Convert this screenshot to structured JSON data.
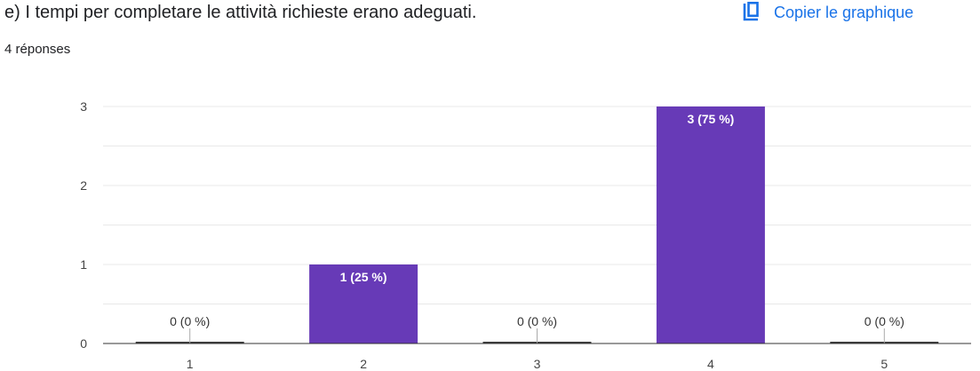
{
  "header": {
    "question": "e) I tempi per completare le attività richieste erano adeguati.",
    "response_count": "4 réponses",
    "copy_label": "Copier le graphique",
    "copy_icon": "copy-icon"
  },
  "colors": {
    "bar": "#673ab7",
    "accent": "#1a73e8",
    "grid": "#e8e8e8",
    "axis": "#333333",
    "text": "#202124"
  },
  "chart_data": {
    "type": "bar",
    "categories": [
      "1",
      "2",
      "3",
      "4",
      "5"
    ],
    "values": [
      0,
      1,
      0,
      3,
      0
    ],
    "data_labels": [
      "0 (0 %)",
      "1 (25 %)",
      "0 (0 %)",
      "3 (75 %)",
      "0 (0 %)"
    ],
    "yticks": [
      0,
      1,
      2,
      3
    ],
    "ylim": [
      0,
      3
    ],
    "grid": true,
    "legend": "none",
    "title": "",
    "xlabel": "",
    "ylabel": ""
  }
}
